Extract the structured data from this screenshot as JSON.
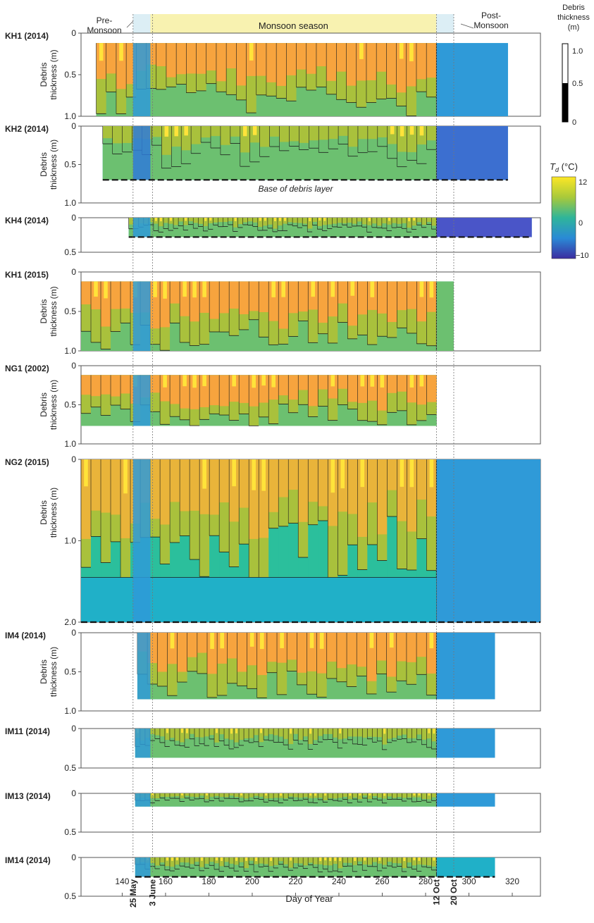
{
  "chart_data": {
    "type": "heatmap",
    "xlabel": "Day of Year",
    "xlim": [
      121,
      333
    ],
    "xticks": [
      "140",
      "160",
      "180",
      "200",
      "220",
      "240",
      "260",
      "280",
      "300",
      "320"
    ],
    "xtick_values": [
      140,
      160,
      180,
      200,
      220,
      240,
      260,
      280,
      300,
      320
    ],
    "seasons": [
      {
        "label": "Pre-\nMonsoon",
        "start": 145,
        "end": 153,
        "color": "#dceef5"
      },
      {
        "label": "Monsoon season",
        "start": 153,
        "end": 285,
        "color": "#f8f2b0"
      },
      {
        "label": "Post-\nMonsoon",
        "start": 285,
        "end": 293,
        "color": "#dceef5"
      }
    ],
    "date_markers": [
      {
        "label": "25 May",
        "day": 145
      },
      {
        "label": "3 June",
        "day": 154
      },
      {
        "label": "12 Oct",
        "day": 285
      },
      {
        "label": "20 Oct",
        "day": 293
      }
    ],
    "annotation": "Base of debris layer",
    "colorbar": {
      "title": "T_d (°C)",
      "ticks": [
        "12",
        "0",
        "−10"
      ],
      "values": [
        12,
        0,
        -10
      ],
      "range": [
        -10,
        12
      ]
    },
    "thickness_legend": {
      "title": "Debris\nthickness\n(m)",
      "ticks": [
        "1.0",
        "0.5",
        "0"
      ]
    },
    "ylabel": "Debris\nthickness (m)",
    "panels": [
      {
        "name": "KH1 (2014)",
        "ymax": 1.0,
        "yticks": [
          "0",
          "0.5",
          "1.0"
        ],
        "tick_values": [
          0,
          0.5,
          1.0
        ],
        "ylabel": true,
        "start": 128,
        "end": 318,
        "depth": 1.0,
        "base_line": false,
        "pattern": "warm",
        "post_color": "#2f9ad8"
      },
      {
        "name": "KH2 (2014)",
        "ymax": 1.0,
        "yticks": [
          "0",
          "0.5",
          "1.0"
        ],
        "tick_values": [
          0,
          0.5,
          1.0
        ],
        "ylabel": true,
        "start": 131,
        "end": 318,
        "depth": 0.7,
        "base_line": true,
        "pattern": "stripe",
        "post_color": "#3c6fd0"
      },
      {
        "name": "KH4 (2014)",
        "ymax": 0.5,
        "yticks": [
          "0",
          "0.5"
        ],
        "tick_values": [
          0,
          0.5
        ],
        "ylabel": false,
        "start": 143,
        "end": 329,
        "depth": 0.28,
        "base_line": true,
        "pattern": "thin",
        "post_color": "#4a55c8"
      },
      {
        "name": "KH1 (2015)",
        "ymax": 1.0,
        "yticks": [
          "0",
          "0.5",
          "1.0"
        ],
        "tick_values": [
          0,
          0.5,
          1.0
        ],
        "ylabel": true,
        "start": 121,
        "end": 293,
        "depth": 1.0,
        "base_line": false,
        "pattern": "warm",
        "post_color": "#6cc070"
      },
      {
        "name": "NG1 (2002)",
        "ymax": 1.0,
        "yticks": [
          "0",
          "0.5",
          "1.0"
        ],
        "tick_values": [
          0,
          0.5,
          1.0
        ],
        "ylabel": true,
        "start": 121,
        "end": 285,
        "depth": 0.77,
        "base_line": false,
        "pattern": "warm",
        "post_color": "#6cc070"
      },
      {
        "name": "NG2 (2015)",
        "ymax": 2.0,
        "yticks": [
          "0",
          "1.0",
          "2.0"
        ],
        "tick_values": [
          0,
          1.0,
          2.0
        ],
        "ylabel": true,
        "start": 121,
        "end": 333,
        "depth": 2.0,
        "base_line": true,
        "pattern": "deep",
        "post_color": "#2f9ad8"
      },
      {
        "name": "IM4 (2014)",
        "ymax": 1.0,
        "yticks": [
          "0",
          "0.5",
          "1.0"
        ],
        "tick_values": [
          0,
          0.5,
          1.0
        ],
        "ylabel": true,
        "start": 147,
        "end": 312,
        "depth": 0.85,
        "base_line": false,
        "pattern": "warm",
        "post_color": "#2f9ad8"
      },
      {
        "name": "IM11 (2014)",
        "ymax": 0.5,
        "yticks": [
          "0",
          "0.5"
        ],
        "tick_values": [
          0,
          0.5
        ],
        "ylabel": false,
        "start": 146,
        "end": 312,
        "depth": 0.37,
        "base_line": false,
        "pattern": "thin",
        "post_color": "#2f9ad8"
      },
      {
        "name": "IM13 (2014)",
        "ymax": 0.5,
        "yticks": [
          "0",
          "0.5"
        ],
        "tick_values": [
          0,
          0.5
        ],
        "ylabel": false,
        "start": 146,
        "end": 312,
        "depth": 0.17,
        "base_line": false,
        "pattern": "thin",
        "post_color": "#2f9ad8"
      },
      {
        "name": "IM14 (2014)",
        "ymax": 0.5,
        "yticks": [
          "0",
          "0.5"
        ],
        "tick_values": [
          0,
          0.5
        ],
        "ylabel": false,
        "start": 146,
        "end": 312,
        "depth": 0.25,
        "base_line": true,
        "pattern": "thin",
        "post_color": "#20b0c8"
      }
    ]
  }
}
